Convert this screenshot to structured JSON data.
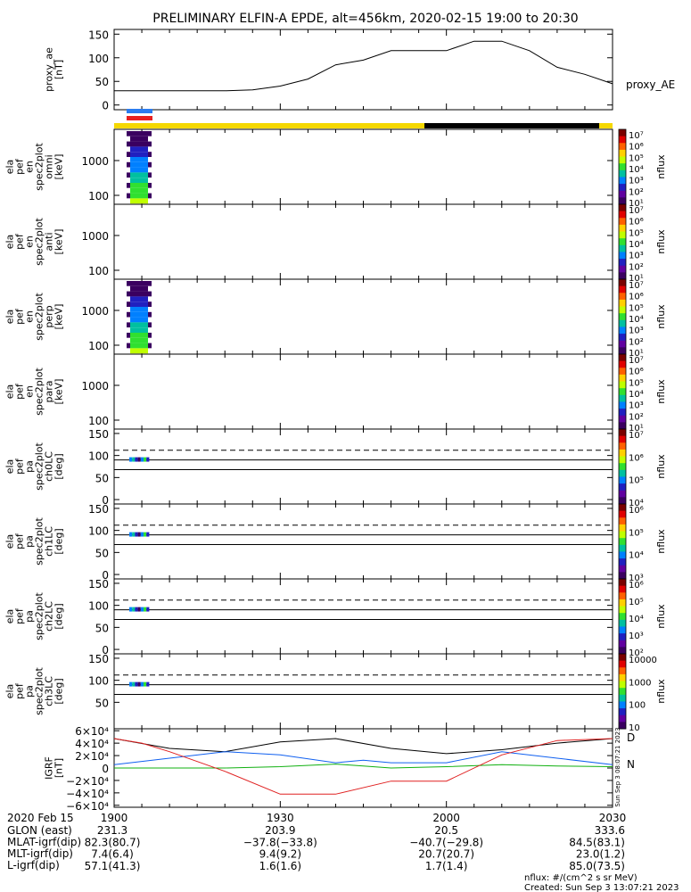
{
  "title": "PRELIMINARY ELFIN-A EPDE, alt=456km, 2020-02-15 19:00 to 20:30",
  "colors": {
    "yellow": "#f5d800",
    "black": "#000000",
    "blue": "#1060f0",
    "red": "#e02020",
    "green": "#10b010"
  },
  "top_markers": {
    "blue": "#2b7cf0",
    "red": "#e82020"
  },
  "chart_data": [
    {
      "type": "line",
      "ylabel": [
        "proxy_ae",
        "[nT]"
      ],
      "legend": "proxy_AE",
      "yticks": [
        "150",
        "100",
        "50",
        "0"
      ],
      "ylim": [
        -10,
        160
      ],
      "xlim": [
        0,
        90
      ],
      "x": [
        0,
        5,
        10,
        15,
        20,
        25,
        30,
        35,
        40,
        45,
        50,
        55,
        60,
        65,
        70,
        75,
        80,
        85,
        90
      ],
      "y": [
        30,
        30,
        30,
        30,
        30,
        32,
        40,
        55,
        85,
        95,
        115,
        115,
        115,
        135,
        135,
        115,
        80,
        65,
        45
      ]
    },
    {
      "type": "heatmap",
      "ylabel": [
        "ela",
        "pef",
        "en",
        "spec2plot",
        "omni",
        "[keV]"
      ],
      "yticks": [
        "1000",
        "100"
      ],
      "cbar_label": "nflux",
      "cbar_ticks": [
        "10⁷",
        "10⁶",
        "10⁵",
        "10⁴",
        "10³",
        "10²",
        "10¹"
      ]
    },
    {
      "type": "heatmap",
      "ylabel": [
        "ela",
        "pef",
        "en",
        "spec2plot",
        "anti",
        "[keV]"
      ],
      "yticks": [
        "1000",
        "100"
      ],
      "cbar_label": "nflux",
      "cbar_ticks": [
        "10⁷",
        "10⁶",
        "10⁵",
        "10⁴",
        "10³",
        "10²",
        "10¹"
      ]
    },
    {
      "type": "heatmap",
      "ylabel": [
        "ela",
        "pef",
        "en",
        "spec2plot",
        "perp",
        "[keV]"
      ],
      "yticks": [
        "1000",
        "100"
      ],
      "cbar_label": "nflux",
      "cbar_ticks": [
        "10⁷",
        "10⁶",
        "10⁵",
        "10⁴",
        "10³",
        "10²",
        "10¹"
      ]
    },
    {
      "type": "heatmap",
      "ylabel": [
        "ela",
        "pef",
        "en",
        "spec2plot",
        "para",
        "[keV]"
      ],
      "yticks": [
        "1000",
        "100"
      ],
      "cbar_label": "nflux",
      "cbar_ticks": [
        "10⁷",
        "10⁶",
        "10⁵",
        "10⁴",
        "10³",
        "10²",
        "10¹"
      ]
    },
    {
      "type": "heatmap",
      "ylabel": [
        "ela",
        "pef",
        "pa",
        "spec2plot",
        "ch0LC",
        "[deg]"
      ],
      "yticks": [
        "150",
        "100",
        "50",
        "0"
      ],
      "cbar_label": "nflux",
      "cbar_ticks": [
        "10⁷",
        "10⁶",
        "10⁵",
        "10⁴"
      ]
    },
    {
      "type": "heatmap",
      "ylabel": [
        "ela",
        "pef",
        "pa",
        "spec2plot",
        "ch1LC",
        "[deg]"
      ],
      "yticks": [
        "150",
        "100",
        "50",
        "0"
      ],
      "cbar_label": "nflux",
      "cbar_ticks": [
        "10⁶",
        "10⁵",
        "10⁴",
        "10³"
      ]
    },
    {
      "type": "heatmap",
      "ylabel": [
        "ela",
        "pef",
        "pa",
        "spec2plot",
        "ch2LC",
        "[deg]"
      ],
      "yticks": [
        "150",
        "100",
        "50",
        "0"
      ],
      "cbar_label": "nflux",
      "cbar_ticks": [
        "10⁶",
        "10⁵",
        "10⁴",
        "10³",
        "10²"
      ]
    },
    {
      "type": "heatmap",
      "ylabel": [
        "ela",
        "pef",
        "pa",
        "spec2plot",
        "ch3LC",
        "[deg]"
      ],
      "yticks": [
        "150",
        "100",
        "50"
      ],
      "cbar_label": "nflux",
      "cbar_ticks": [
        "10000",
        "1000",
        "100",
        "10"
      ]
    },
    {
      "type": "line",
      "ylabel": [
        "IGRF",
        "[nT]"
      ],
      "yticks": [
        "6×10⁴",
        "4×10⁴",
        "2×10⁴",
        "0",
        "−2×10⁴",
        "−4×10⁴",
        "−6×10⁴"
      ],
      "ylim": [
        -60000,
        60000
      ],
      "xlim": [
        0,
        90
      ],
      "legend": [
        "D",
        "N"
      ],
      "side_text": "Sun Sep  3 08:07:21 2023",
      "series": [
        {
          "color": "#000000",
          "x": [
            0,
            10,
            20,
            30,
            40,
            50,
            60,
            70,
            80,
            90
          ],
          "y": [
            45000,
            30000,
            25000,
            40000,
            45000,
            30000,
            22000,
            28000,
            38000,
            45000
          ]
        },
        {
          "color": "#1060f0",
          "x": [
            0,
            10,
            20,
            30,
            40,
            45,
            50,
            60,
            70,
            80,
            90
          ],
          "y": [
            5000,
            15000,
            25000,
            20000,
            8000,
            12000,
            8000,
            8000,
            25000,
            15000,
            5000
          ]
        },
        {
          "color": "#10b010",
          "x": [
            0,
            10,
            20,
            30,
            40,
            45,
            50,
            60,
            70,
            80,
            90
          ],
          "y": [
            0,
            0,
            0,
            2000,
            6000,
            3000,
            0,
            2000,
            5000,
            3000,
            2000
          ]
        },
        {
          "color": "#e02020",
          "x": [
            0,
            5,
            10,
            15,
            20,
            30,
            40,
            50,
            60,
            70,
            80,
            90
          ],
          "y": [
            45000,
            38000,
            25000,
            10000,
            -5000,
            -40000,
            -40000,
            -20000,
            -20000,
            20000,
            42000,
            45000
          ]
        }
      ]
    }
  ],
  "x_axis": {
    "ticks": [
      "1900",
      "1930",
      "2000",
      "2030"
    ],
    "ticks_x": [
      0,
      30,
      60,
      90
    ],
    "rows": [
      {
        "label": "2020 Feb 15",
        "values": [
          "",
          "",
          "",
          ""
        ]
      },
      {
        "label": "GLON (east)",
        "values": [
          "231.3",
          "203.9",
          "20.5",
          "333.6"
        ]
      },
      {
        "label": "MLAT-igrf(dip)",
        "values": [
          "82.3(80.7)",
          "−37.8(−33.8)",
          "−40.7(−29.8)",
          "84.5(83.1)"
        ]
      },
      {
        "label": "MLT-igrf(dip)",
        "values": [
          "7.4(6.4)",
          "9.4(9.2)",
          "20.7(20.7)",
          "23.0(1.2)"
        ]
      },
      {
        "label": "L-igrf(dip)",
        "values": [
          "57.1(41.3)",
          "1.6(1.6)",
          "1.7(1.4)",
          "85.0(73.5)"
        ]
      }
    ]
  },
  "footer": {
    "units": "nflux: #/(cm^2 s sr MeV)",
    "created": "Created: Sun Sep  3 13:07:21 2023"
  }
}
